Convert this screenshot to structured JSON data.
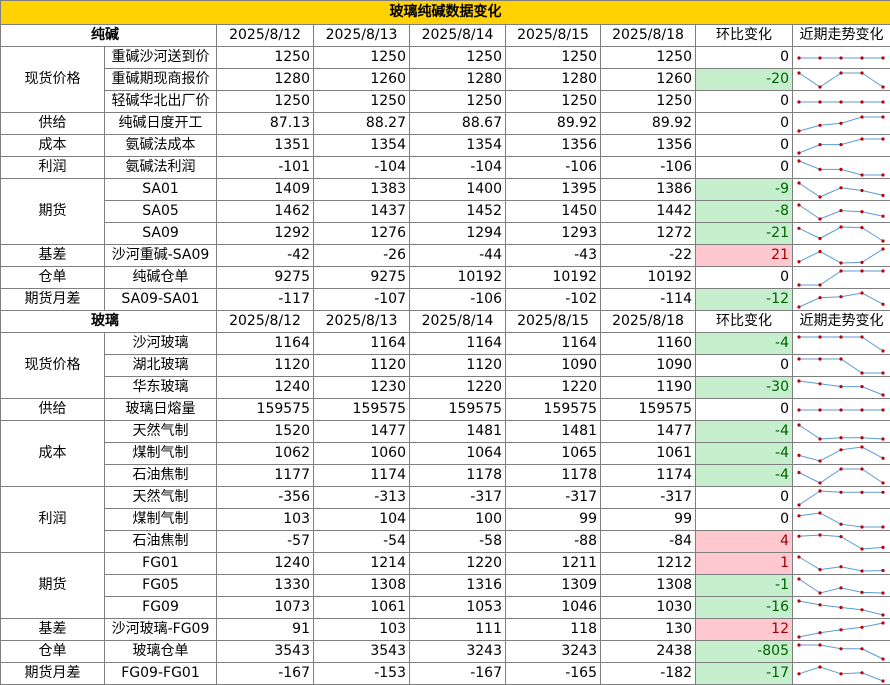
{
  "title": "玻璃纯碱数据变化",
  "dates": [
    "2025/8/12",
    "2025/8/13",
    "2025/8/14",
    "2025/8/15",
    "2025/8/18"
  ],
  "change_label": "环比变化",
  "trend_label": "近期走势变化",
  "colors": {
    "header": "#ffd200",
    "down_bg": "#c6efce",
    "down_fg": "#006100",
    "up_bg": "#ffc7ce",
    "up_fg": "#9c0006",
    "spark_line": "#5b9bd5",
    "spark_marker": "#c00000"
  },
  "sections": [
    {
      "name": "纯碱",
      "groups": [
        {
          "name": "现货价格",
          "rows": [
            {
              "item": "重碱沙河送到价",
              "values": [
                1250,
                1250,
                1250,
                1250,
                1250
              ],
              "change": 0
            },
            {
              "item": "重碱期现商报价",
              "values": [
                1280,
                1260,
                1280,
                1280,
                1260
              ],
              "change": -20
            },
            {
              "item": "轻碱华北出厂价",
              "values": [
                1250,
                1250,
                1250,
                1250,
                1250
              ],
              "change": 0
            }
          ]
        },
        {
          "name": "供给",
          "rows": [
            {
              "item": "纯碱日度开工",
              "values": [
                87.13,
                88.27,
                88.67,
                89.92,
                89.92
              ],
              "change": 0
            }
          ]
        },
        {
          "name": "成本",
          "rows": [
            {
              "item": "氨碱法成本",
              "values": [
                1351,
                1354,
                1354,
                1356,
                1356
              ],
              "change": 0
            }
          ]
        },
        {
          "name": "利润",
          "rows": [
            {
              "item": "氨碱法利润",
              "values": [
                -101,
                -104,
                -104,
                -106,
                -106
              ],
              "change": 0
            }
          ]
        },
        {
          "name": "期货",
          "rows": [
            {
              "item": "SA01",
              "values": [
                1409,
                1383,
                1400,
                1395,
                1386
              ],
              "change": -9
            },
            {
              "item": "SA05",
              "values": [
                1462,
                1437,
                1452,
                1450,
                1442
              ],
              "change": -8
            },
            {
              "item": "SA09",
              "values": [
                1292,
                1276,
                1294,
                1293,
                1272
              ],
              "change": -21
            }
          ]
        },
        {
          "name": "基差",
          "rows": [
            {
              "item": "沙河重碱-SA09",
              "values": [
                -42,
                -26,
                -44,
                -43,
                -22
              ],
              "change": 21
            }
          ]
        },
        {
          "name": "仓单",
          "rows": [
            {
              "item": "纯碱仓单",
              "values": [
                9275,
                9275,
                10192,
                10192,
                10192
              ],
              "change": 0
            }
          ]
        },
        {
          "name": "期货月差",
          "rows": [
            {
              "item": "SA09-SA01",
              "values": [
                -117,
                -107,
                -106,
                -102,
                -114
              ],
              "change": -12
            }
          ]
        }
      ]
    },
    {
      "name": "玻璃",
      "groups": [
        {
          "name": "现货价格",
          "rows": [
            {
              "item": "沙河玻璃",
              "values": [
                1164,
                1164,
                1164,
                1164,
                1160
              ],
              "change": -4
            },
            {
              "item": "湖北玻璃",
              "values": [
                1120,
                1120,
                1120,
                1090,
                1090
              ],
              "change": 0
            },
            {
              "item": "华东玻璃",
              "values": [
                1240,
                1230,
                1220,
                1220,
                1190
              ],
              "change": -30
            }
          ]
        },
        {
          "name": "供给",
          "rows": [
            {
              "item": "玻璃日熔量",
              "values": [
                159575,
                159575,
                159575,
                159575,
                159575
              ],
              "change": 0
            }
          ]
        },
        {
          "name": "成本",
          "rows": [
            {
              "item": "天然气制",
              "values": [
                1520,
                1477,
                1481,
                1481,
                1477
              ],
              "change": -4
            },
            {
              "item": "煤制气制",
              "values": [
                1062,
                1060,
                1064,
                1065,
                1061
              ],
              "change": -4
            },
            {
              "item": "石油焦制",
              "values": [
                1177,
                1174,
                1178,
                1178,
                1174
              ],
              "change": -4
            }
          ]
        },
        {
          "name": "利润",
          "rows": [
            {
              "item": "天然气制",
              "values": [
                -356,
                -313,
                -317,
                -317,
                -317
              ],
              "change": 0
            },
            {
              "item": "煤制气制",
              "values": [
                103,
                104,
                100,
                99,
                99
              ],
              "change": 0
            },
            {
              "item": "石油焦制",
              "values": [
                -57,
                -54,
                -58,
                -88,
                -84
              ],
              "change": 4
            }
          ]
        },
        {
          "name": "期货",
          "rows": [
            {
              "item": "FG01",
              "values": [
                1240,
                1214,
                1220,
                1211,
                1212
              ],
              "change": 1
            },
            {
              "item": "FG05",
              "values": [
                1330,
                1308,
                1316,
                1309,
                1308
              ],
              "change": -1
            },
            {
              "item": "FG09",
              "values": [
                1073,
                1061,
                1053,
                1046,
                1030
              ],
              "change": -16
            }
          ]
        },
        {
          "name": "基差",
          "rows": [
            {
              "item": "沙河玻璃-FG09",
              "values": [
                91,
                103,
                111,
                118,
                130
              ],
              "change": 12
            }
          ]
        },
        {
          "name": "仓单",
          "rows": [
            {
              "item": "玻璃仓单",
              "values": [
                3543,
                3543,
                3243,
                3243,
                2438
              ],
              "change": -805
            }
          ]
        },
        {
          "name": "期货月差",
          "rows": [
            {
              "item": "FG09-FG01",
              "values": [
                -167,
                -153,
                -167,
                -165,
                -182
              ],
              "change": -17
            }
          ]
        }
      ]
    }
  ]
}
